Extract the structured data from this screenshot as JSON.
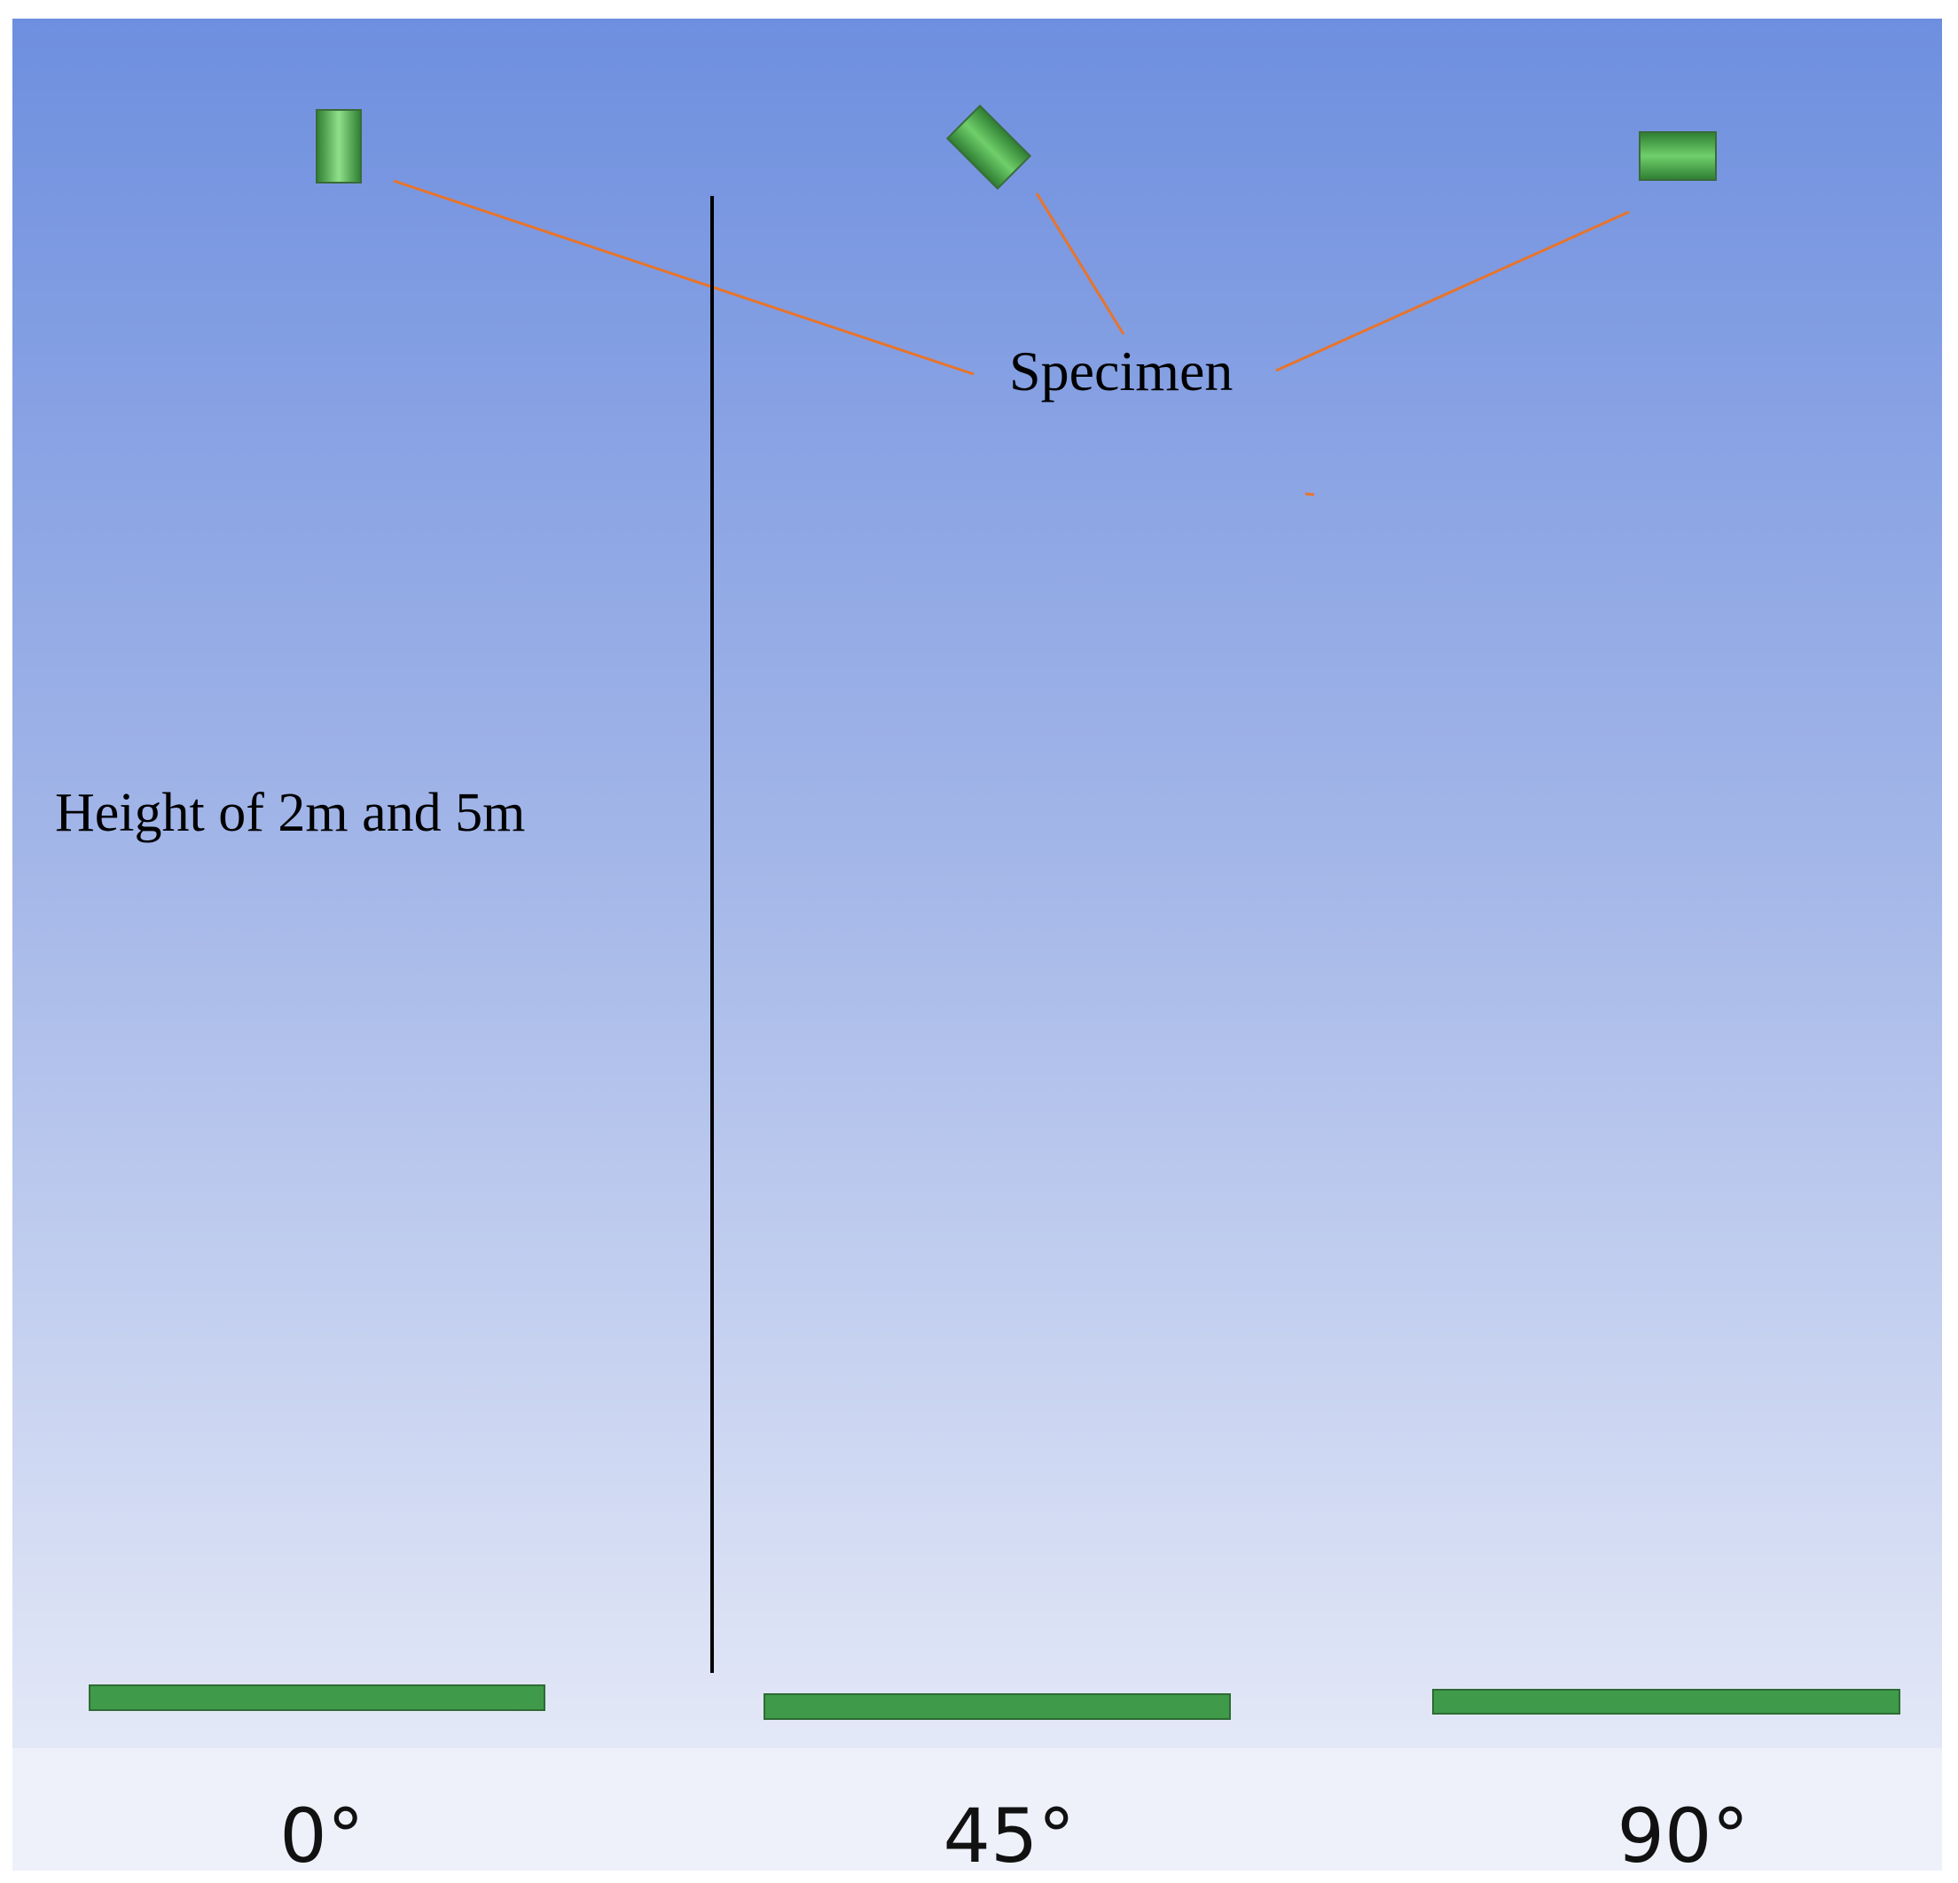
{
  "annotations": {
    "specimen": "Specimen",
    "height": "Height of 2m and 5m"
  },
  "orientations": [
    "0°",
    "45°",
    "90°"
  ]
}
